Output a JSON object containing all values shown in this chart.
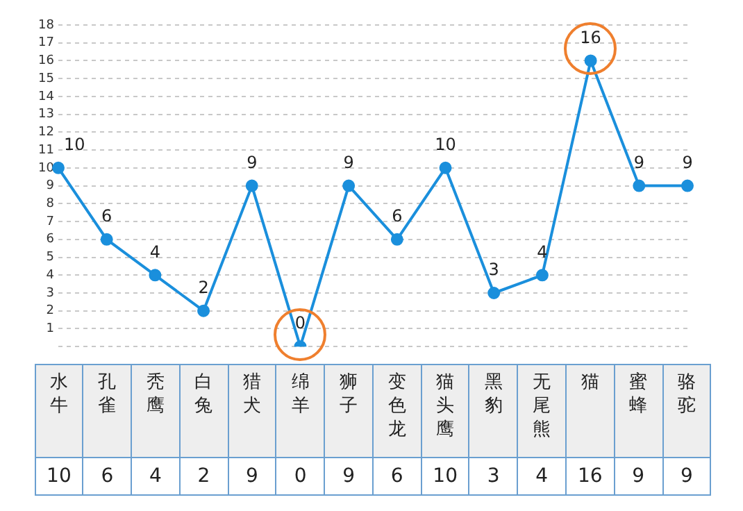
{
  "chart_data": {
    "type": "line",
    "categories": [
      "水牛",
      "孔雀",
      "秃鹰",
      "白兔",
      "猎犬",
      "绵羊",
      "狮子",
      "变色龙",
      "猫头鹰",
      "黑豹",
      "无尾熊",
      "猫",
      "蜜蜂",
      "骆驼"
    ],
    "values": [
      10,
      6,
      4,
      2,
      9,
      0,
      9,
      6,
      10,
      3,
      4,
      16,
      9,
      9
    ],
    "color": "#1a8fdc",
    "ylim": [
      0,
      18
    ],
    "yticks": [
      {
        "value": 0,
        "label": null
      },
      1,
      2,
      3,
      4,
      5,
      6,
      7,
      8,
      9,
      10,
      11,
      12,
      13,
      14,
      15,
      16,
      17,
      18
    ],
    "annotations": [
      {
        "text": "10",
        "x": "水牛",
        "y": 10
      },
      {
        "text": "6",
        "x": "孔雀",
        "y": 6
      },
      {
        "text": "4",
        "x": "秃鹰",
        "y": 4
      },
      {
        "text": "2",
        "x": "白兔",
        "y": 2
      },
      {
        "text": "9",
        "x": "猎犬",
        "y": 9
      },
      {
        "text": "0",
        "x": "绵羊",
        "y": 0
      },
      {
        "text": "9",
        "x": "狮子",
        "y": 9
      },
      {
        "text": "6",
        "x": "变色龙",
        "y": 6
      },
      {
        "text": "10",
        "x": "猫头鹰",
        "y": 10
      },
      {
        "text": "3",
        "x": "黑豹",
        "y": 3
      },
      {
        "text": "4",
        "x": "无尾熊",
        "y": 4
      },
      {
        "text": "16",
        "x": "猫",
        "y": 16
      },
      {
        "text": "9",
        "x": "蜜蜂",
        "y": 9
      },
      {
        "text": "9",
        "x": "骆驼",
        "y": 9
      }
    ],
    "grid": "y",
    "marker": "circle",
    "line_style": "solid",
    "data_labels": true,
    "tick_labels": "y"
  }
}
